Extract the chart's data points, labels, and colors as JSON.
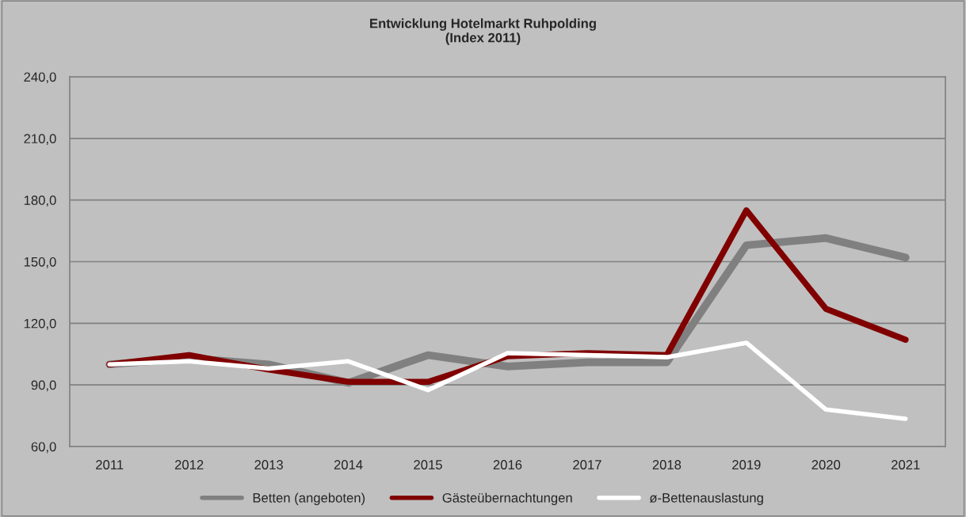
{
  "chart_data": {
    "type": "line",
    "title": "Entwicklung Hotelmarkt Ruhpolding\n(Index 2011)",
    "categories": [
      "2011",
      "2012",
      "2013",
      "2014",
      "2015",
      "2016",
      "2017",
      "2018",
      "2019",
      "2020",
      "2021"
    ],
    "series": [
      {
        "name": "Betten (angeboten)",
        "color": "#808080",
        "values": [
          100,
          103,
          100,
          91,
          104.5,
          99,
          101,
          101,
          158,
          161.5,
          152
        ]
      },
      {
        "name": "Gästeübernachtungen",
        "color": "#800000",
        "values": [
          100,
          104.5,
          97.5,
          91.5,
          91.5,
          104,
          105.5,
          104.5,
          175,
          127,
          112
        ]
      },
      {
        "name": "ø-Bettenauslastung",
        "color": "#ffffff",
        "values": [
          100,
          101.5,
          98,
          101.5,
          87.5,
          105.5,
          104.5,
          103.5,
          110.5,
          78,
          73.5
        ]
      }
    ],
    "ylim": [
      60,
      240
    ],
    "yticks": [
      {
        "value": 60,
        "label": "60,0"
      },
      {
        "value": 90,
        "label": "90,0"
      },
      {
        "value": 120,
        "label": "120,0"
      },
      {
        "value": 150,
        "label": "150,0"
      },
      {
        "value": 180,
        "label": "180,0"
      },
      {
        "value": 210,
        "label": "210,0"
      },
      {
        "value": 240,
        "label": "240,0"
      }
    ],
    "grid": "y",
    "legend": "bottom",
    "marker": "none",
    "line_style": "solid"
  }
}
